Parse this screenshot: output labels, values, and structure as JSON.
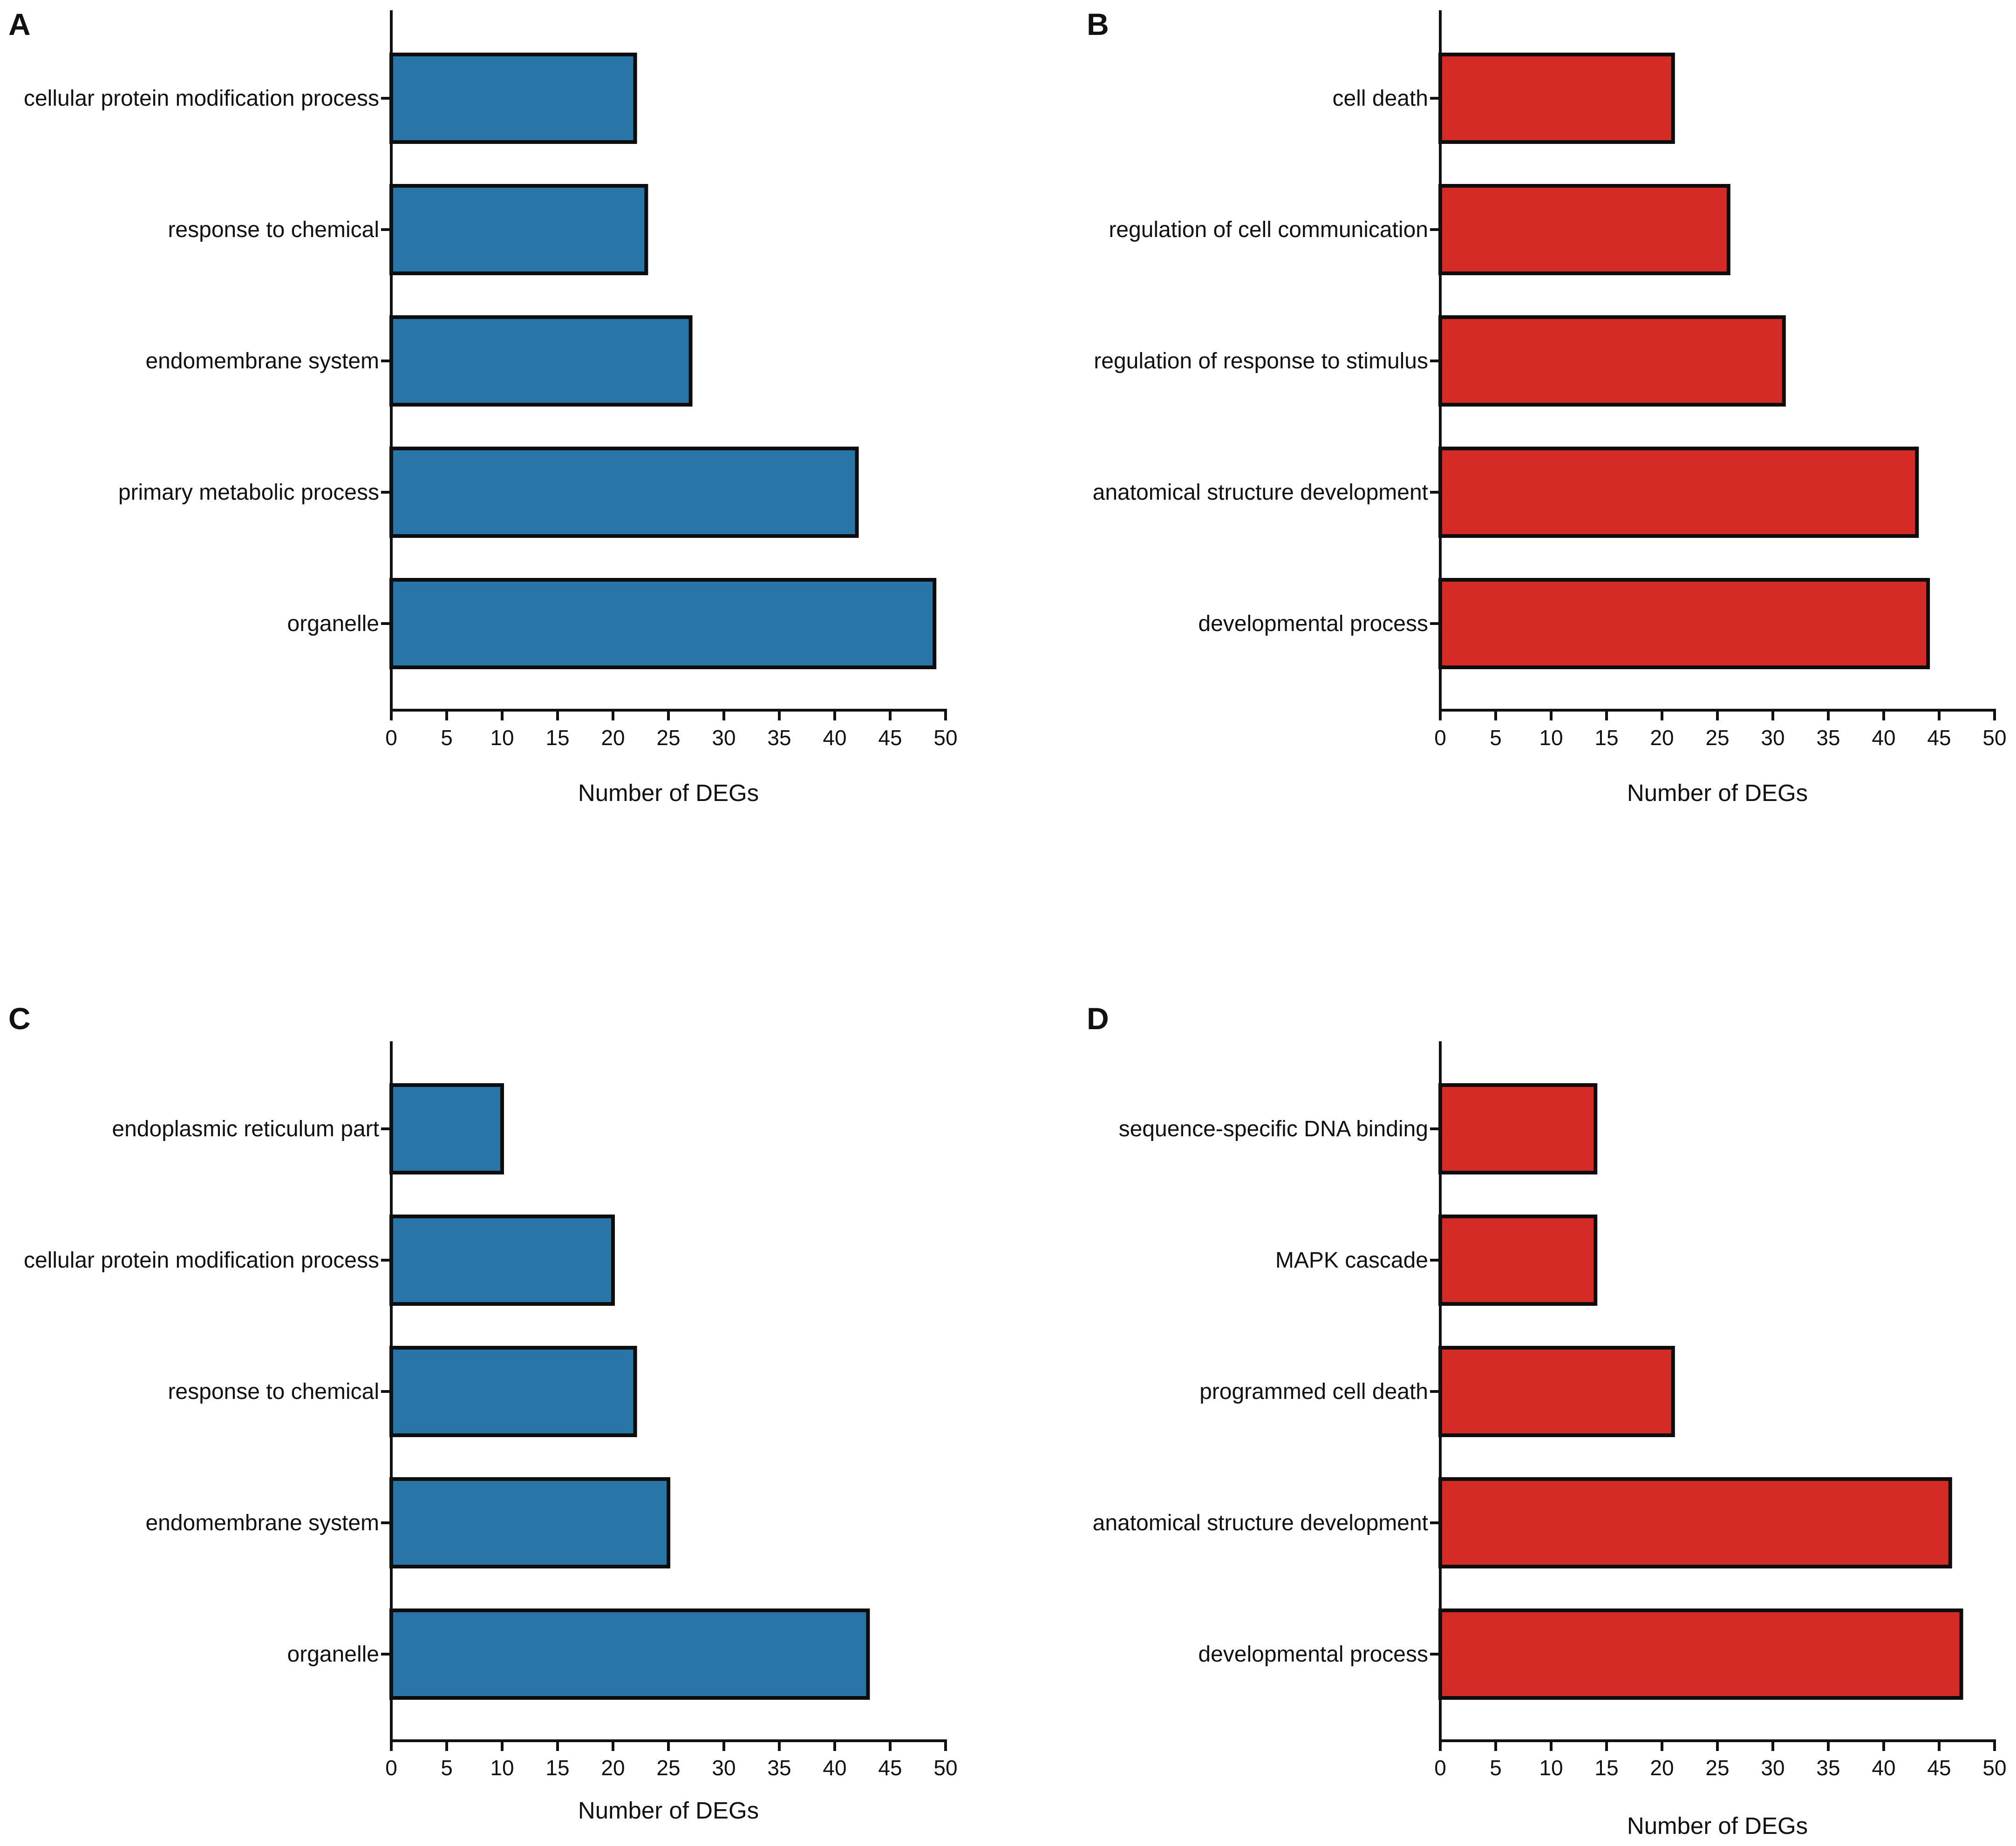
{
  "chart_data": [
    {
      "panel": "A",
      "type": "bar",
      "orientation": "horizontal",
      "color": "#2a75a8",
      "categories": [
        "cellular protein modification process",
        "response to chemical",
        "endomembrane system",
        "primary metabolic process",
        "organelle"
      ],
      "values": [
        22,
        23,
        27,
        42,
        49
      ],
      "xlabel": "Number of DEGs",
      "ylabel": "",
      "xlim": [
        0,
        50
      ],
      "xticks": [
        "0",
        "5",
        "10",
        "15",
        "20",
        "25",
        "30",
        "35",
        "40",
        "45",
        "50"
      ],
      "grid": false,
      "legend": "none"
    },
    {
      "panel": "B",
      "type": "bar",
      "orientation": "horizontal",
      "color": "#d42b27",
      "categories": [
        "cell death",
        "regulation of cell communication",
        "regulation of response to stimulus",
        "anatomical structure development",
        "developmental process"
      ],
      "values": [
        21,
        26,
        31,
        43,
        44
      ],
      "xlabel": "Number of DEGs",
      "ylabel": "",
      "xlim": [
        0,
        50
      ],
      "xticks": [
        "0",
        "5",
        "10",
        "15",
        "20",
        "25",
        "30",
        "35",
        "40",
        "45",
        "50"
      ],
      "grid": false,
      "legend": "none"
    },
    {
      "panel": "C",
      "type": "bar",
      "orientation": "horizontal",
      "color": "#2a75a8",
      "categories": [
        "endoplasmic reticulum part",
        "cellular protein modification process",
        "response to chemical",
        "endomembrane system",
        "organelle"
      ],
      "values": [
        10,
        20,
        22,
        25,
        43
      ],
      "xlabel": "Number of DEGs",
      "ylabel": "",
      "xlim": [
        0,
        50
      ],
      "xticks": [
        "0",
        "5",
        "10",
        "15",
        "20",
        "25",
        "30",
        "35",
        "40",
        "45",
        "50"
      ],
      "grid": false,
      "legend": "none"
    },
    {
      "panel": "D",
      "type": "bar",
      "orientation": "horizontal",
      "color": "#d42b27",
      "categories": [
        "sequence-specific DNA binding",
        "MAPK cascade",
        "programmed cell death",
        "anatomical structure development",
        "developmental process"
      ],
      "values": [
        14,
        14,
        21,
        46,
        47
      ],
      "xlabel": "Number of DEGs",
      "ylabel": "",
      "xlim": [
        0,
        50
      ],
      "xticks": [
        "0",
        "5",
        "10",
        "15",
        "20",
        "25",
        "30",
        "35",
        "40",
        "45",
        "50"
      ],
      "grid": false,
      "legend": "none"
    }
  ]
}
